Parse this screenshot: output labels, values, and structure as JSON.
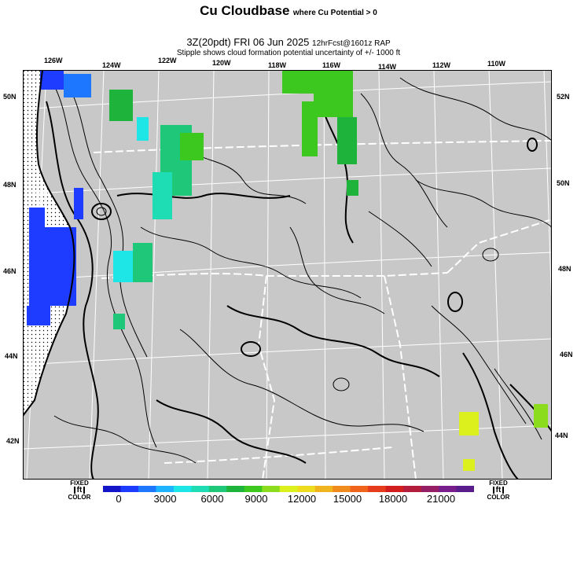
{
  "header": {
    "title": "Cu Cloudbase",
    "title_note": "where Cu Potential > 0",
    "run_main": "3Z(20pdt) FRI 06 Jun 2025",
    "run_note": "12hrFcst@1601z RAP",
    "stipple_note": "Stipple shows cloud formation potential uncertainty of +/- 1000 ft"
  },
  "map": {
    "lon_labels_top": [
      "126W",
      "124W",
      "122W",
      "120W",
      "118W",
      "116W",
      "114W",
      "112W",
      "110W"
    ],
    "lat_labels_left": [
      "50N",
      "48N",
      "46N",
      "44N",
      "42N"
    ],
    "lat_labels_right": [
      "52N",
      "50N",
      "48N",
      "46N",
      "44N"
    ],
    "background_color": "#c8c8c8"
  },
  "colorbar": {
    "left_label_top": "FIXED",
    "left_label_unit": "ft",
    "left_label_bottom": "COLOR",
    "right_label_top": "FIXED",
    "right_label_unit": "ft",
    "right_label_bottom": "COLOR",
    "ticks": [
      "0",
      "3000",
      "6000",
      "9000",
      "12000",
      "15000",
      "18000",
      "21000"
    ],
    "colors": [
      "#1414c8",
      "#1e3cff",
      "#1e78ff",
      "#1eb4ff",
      "#1ee6e6",
      "#1edcb4",
      "#1ec878",
      "#1eb43c",
      "#3cc81e",
      "#8cdc1e",
      "#dcf01e",
      "#f0dc1e",
      "#f0b41e",
      "#f08c1e",
      "#f0641e",
      "#e63c1e",
      "#d21e1e",
      "#b41e3c",
      "#961e64",
      "#781e8c",
      "#5a1e8c"
    ]
  }
}
